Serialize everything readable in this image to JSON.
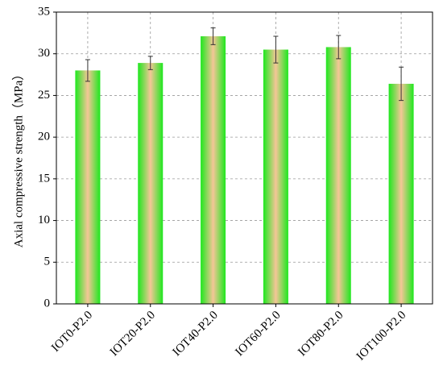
{
  "chart_data": {
    "type": "bar",
    "y_label": "Axial compressive strength（MPa）",
    "categories": [
      "IOT0-P2.0",
      "IOT20-P2.0",
      "IOT40-P2.0",
      "IOT60-P2.0",
      "IOT80-P2.0",
      "IOT100-P2.0"
    ],
    "values": [
      28.0,
      28.9,
      32.1,
      30.5,
      30.8,
      26.4
    ],
    "errors": [
      1.3,
      0.8,
      1.0,
      1.6,
      1.4,
      2.0
    ],
    "color": "#1ee81e",
    "center_color": "#f5c697",
    "ylim": [
      0,
      35
    ],
    "yticks": [
      0,
      5,
      10,
      15,
      20,
      25,
      30,
      35
    ],
    "grid": true
  }
}
